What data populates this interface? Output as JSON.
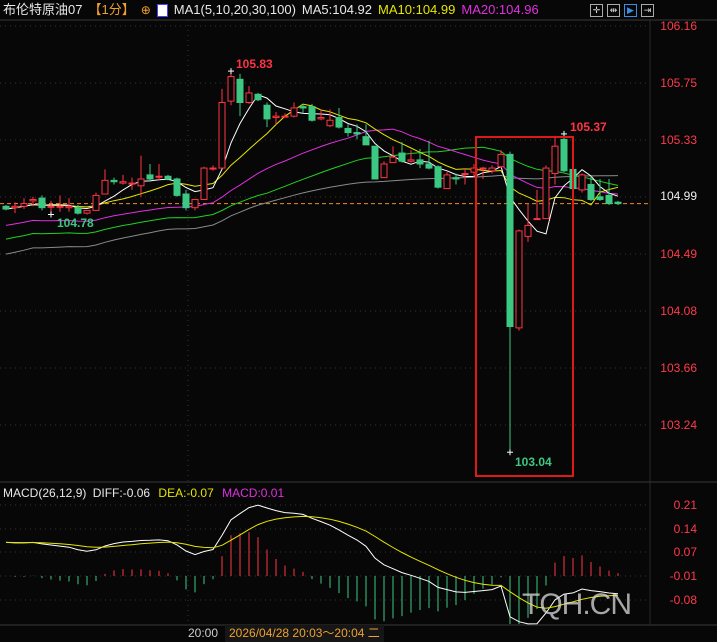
{
  "header": {
    "instrument": "布伦特原油07",
    "period": "【1分】",
    "indicator": "MA1(5,10,20,30,100)",
    "ma5": "MA5:104.92",
    "ma10": "MA10:104.99",
    "ma20": "MA20:104.96",
    "tools": [
      "crosshair-icon",
      "fit-icon",
      "scroll-right-icon",
      "exit-icon"
    ]
  },
  "price_axis": {
    "ticks": [
      "106.16",
      "105.75",
      "105.33",
      "104.49",
      "104.08",
      "103.66",
      "103.24"
    ],
    "current": "104.99"
  },
  "annotations": {
    "high": "105.83",
    "low": "104.78",
    "box_high": "105.37",
    "box_low": "103.04"
  },
  "macd": {
    "title": "MACD(26,12,9)",
    "diff": "DIFF:-0.06",
    "dea": "DEA:-0.07",
    "macd": "MACD:0.01",
    "ticks": [
      "0.21",
      "0.14",
      "0.07",
      "-0.01",
      "-0.08"
    ]
  },
  "time_axis": {
    "tick": "20:00",
    "cursor": "2026/04/28 20:03～20:04 二"
  },
  "watermark": "TQH.CN",
  "colors": {
    "up": "#ff3344",
    "down": "#3cc882",
    "ma5": "#ffffff",
    "ma10": "#e6e600",
    "ma20": "#e030e0",
    "ma30": "#22d022",
    "ma100": "#8a8a8a",
    "highlight": "#e01818"
  },
  "chart_data": {
    "type": "candlestick",
    "fields": [
      "open",
      "high",
      "low",
      "close"
    ],
    "ylim": [
      103.0,
      106.2
    ],
    "candles": [
      [
        104.84,
        104.85,
        104.81,
        104.82
      ],
      [
        104.83,
        104.87,
        104.79,
        104.84
      ],
      [
        104.84,
        104.9,
        104.82,
        104.86
      ],
      [
        104.88,
        104.91,
        104.84,
        104.89
      ],
      [
        104.9,
        104.92,
        104.81,
        104.83
      ],
      [
        104.84,
        104.88,
        104.78,
        104.84
      ],
      [
        104.84,
        104.92,
        104.8,
        104.84
      ],
      [
        104.83,
        104.9,
        104.8,
        104.84
      ],
      [
        104.83,
        104.85,
        104.78,
        104.79
      ],
      [
        104.79,
        104.81,
        104.78,
        104.81
      ],
      [
        104.81,
        104.94,
        104.81,
        104.92
      ],
      [
        104.93,
        105.11,
        104.93,
        105.03
      ],
      [
        105.03,
        105.05,
        105.0,
        105.02
      ],
      [
        105.01,
        105.07,
        105.0,
        105.02
      ],
      [
        105.01,
        105.05,
        104.96,
        105.01
      ],
      [
        104.99,
        105.21,
        104.91,
        105.04
      ],
      [
        105.07,
        105.15,
        105.02,
        105.04
      ],
      [
        105.06,
        105.15,
        105.03,
        105.06
      ],
      [
        105.06,
        105.07,
        105.03,
        105.04
      ],
      [
        105.04,
        105.05,
        104.91,
        104.92
      ],
      [
        104.93,
        104.96,
        104.81,
        104.83
      ],
      [
        104.83,
        104.89,
        104.81,
        104.89
      ],
      [
        104.89,
        105.13,
        104.89,
        105.12
      ],
      [
        105.12,
        105.14,
        105.1,
        105.12
      ],
      [
        105.12,
        105.7,
        105.12,
        105.6
      ],
      [
        105.61,
        105.83,
        105.58,
        105.79
      ],
      [
        105.77,
        105.81,
        105.5,
        105.6
      ],
      [
        105.6,
        105.72,
        105.59,
        105.67
      ],
      [
        105.66,
        105.67,
        105.61,
        105.62
      ],
      [
        105.58,
        105.6,
        105.42,
        105.48
      ],
      [
        105.49,
        105.53,
        105.44,
        105.5
      ],
      [
        105.5,
        105.52,
        105.49,
        105.5
      ],
      [
        105.5,
        105.6,
        105.49,
        105.56
      ],
      [
        105.57,
        105.59,
        105.52,
        105.56
      ],
      [
        105.57,
        105.59,
        105.46,
        105.47
      ],
      [
        105.48,
        105.55,
        105.47,
        105.49
      ],
      [
        105.43,
        105.55,
        105.42,
        105.47
      ],
      [
        105.49,
        105.56,
        105.41,
        105.42
      ],
      [
        105.41,
        105.44,
        105.35,
        105.38
      ],
      [
        105.38,
        105.44,
        105.33,
        105.37
      ],
      [
        105.35,
        105.44,
        105.29,
        105.29
      ],
      [
        105.28,
        105.28,
        105.04,
        105.04
      ],
      [
        105.05,
        105.17,
        105.05,
        105.15
      ],
      [
        105.16,
        105.28,
        105.16,
        105.2
      ],
      [
        105.23,
        105.31,
        105.16,
        105.17
      ],
      [
        105.17,
        105.25,
        105.16,
        105.18
      ],
      [
        105.18,
        105.26,
        105.12,
        105.15
      ],
      [
        105.15,
        105.32,
        105.11,
        105.12
      ],
      [
        105.13,
        105.14,
        104.97,
        104.98
      ],
      [
        104.97,
        105.09,
        104.97,
        105.07
      ],
      [
        105.05,
        105.08,
        105.0,
        105.04
      ],
      [
        105.08,
        105.12,
        105.0,
        105.08
      ],
      [
        105.09,
        105.15,
        105.05,
        105.12
      ],
      [
        105.12,
        105.13,
        105.04,
        105.12
      ],
      [
        105.1,
        105.14,
        105.08,
        105.12
      ],
      [
        105.13,
        105.25,
        105.12,
        105.22
      ],
      [
        105.22,
        105.24,
        103.04,
        103.96
      ],
      [
        103.95,
        104.67,
        103.93,
        104.66
      ],
      [
        104.62,
        104.86,
        104.58,
        104.7
      ],
      [
        104.75,
        104.96,
        104.74,
        104.75
      ],
      [
        104.75,
        105.14,
        104.75,
        105.12
      ],
      [
        105.08,
        105.34,
        105.0,
        105.28
      ],
      [
        105.33,
        105.37,
        105.09,
        105.1
      ],
      [
        105.11,
        105.12,
        104.97,
        104.97
      ],
      [
        104.96,
        105.08,
        104.94,
        105.07
      ],
      [
        105.0,
        105.06,
        104.88,
        104.89
      ],
      [
        104.91,
        105.04,
        104.88,
        104.89
      ],
      [
        104.92,
        105.04,
        104.85,
        104.86
      ],
      [
        104.87,
        104.88,
        104.85,
        104.86
      ]
    ],
    "moving_averages": [
      5,
      10,
      20,
      30,
      100
    ],
    "macd_params": [
      26,
      12,
      9
    ]
  }
}
